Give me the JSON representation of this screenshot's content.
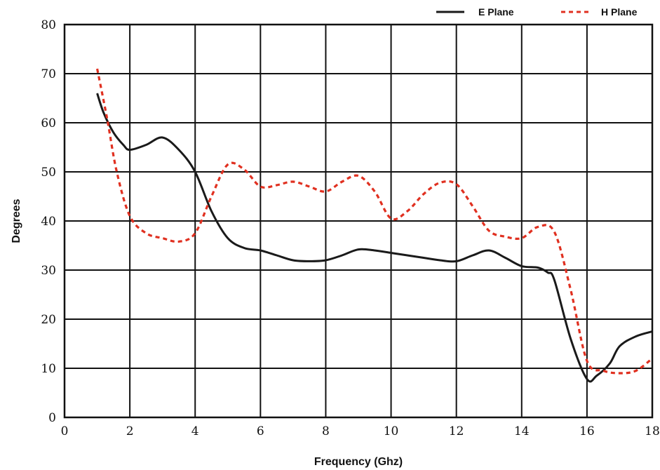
{
  "chart_data": {
    "type": "line",
    "xlabel": "Frequency  (Ghz)",
    "ylabel": "Degrees",
    "xlim": [
      0,
      18
    ],
    "ylim": [
      0,
      80
    ],
    "x_ticks": [
      0,
      2,
      4,
      6,
      8,
      10,
      12,
      14,
      16,
      18
    ],
    "y_ticks": [
      0,
      10,
      20,
      30,
      40,
      50,
      60,
      70,
      80
    ],
    "grid": true,
    "legend_position": "top-right",
    "series": [
      {
        "name": "E Plane",
        "color": "#1a1a1a",
        "style": "solid",
        "points": [
          [
            1,
            66
          ],
          [
            1.2,
            62
          ],
          [
            1.5,
            58
          ],
          [
            1.8,
            55.5
          ],
          [
            2,
            54.5
          ],
          [
            2.5,
            55.5
          ],
          [
            3,
            57
          ],
          [
            3.5,
            54.5
          ],
          [
            4,
            50
          ],
          [
            4.5,
            42
          ],
          [
            5,
            36.5
          ],
          [
            5.5,
            34.5
          ],
          [
            6,
            34
          ],
          [
            6.5,
            33
          ],
          [
            7,
            32
          ],
          [
            7.5,
            31.8
          ],
          [
            8,
            32
          ],
          [
            8.5,
            33
          ],
          [
            9,
            34.2
          ],
          [
            9.5,
            34
          ],
          [
            10,
            33.5
          ],
          [
            10.5,
            33
          ],
          [
            11,
            32.5
          ],
          [
            11.5,
            32
          ],
          [
            12,
            31.8
          ],
          [
            12.5,
            33
          ],
          [
            13,
            34
          ],
          [
            13.5,
            32.5
          ],
          [
            14,
            30.8
          ],
          [
            14.5,
            30.5
          ],
          [
            14.8,
            29.5
          ],
          [
            15,
            28
          ],
          [
            15.5,
            16
          ],
          [
            16,
            7.8
          ],
          [
            16.3,
            8.5
          ],
          [
            16.7,
            11
          ],
          [
            17,
            14.5
          ],
          [
            17.5,
            16.5
          ],
          [
            18,
            17.5
          ]
        ]
      },
      {
        "name": "H Plane",
        "color": "#e03020",
        "style": "dashed",
        "points": [
          [
            1,
            71
          ],
          [
            1.3,
            61
          ],
          [
            1.6,
            50
          ],
          [
            2,
            41
          ],
          [
            2.5,
            37.5
          ],
          [
            3,
            36.5
          ],
          [
            3.5,
            35.8
          ],
          [
            4,
            37.5
          ],
          [
            4.5,
            45
          ],
          [
            5,
            51.5
          ],
          [
            5.5,
            50.5
          ],
          [
            6,
            47
          ],
          [
            6.5,
            47.3
          ],
          [
            7,
            48
          ],
          [
            7.5,
            47
          ],
          [
            8,
            46
          ],
          [
            8.5,
            48
          ],
          [
            9,
            49.2
          ],
          [
            9.5,
            46
          ],
          [
            10,
            40.5
          ],
          [
            10.5,
            42
          ],
          [
            11,
            45.5
          ],
          [
            11.5,
            47.8
          ],
          [
            12,
            47.5
          ],
          [
            12.5,
            43
          ],
          [
            13,
            38
          ],
          [
            13.5,
            36.8
          ],
          [
            14,
            36.5
          ],
          [
            14.5,
            38.8
          ],
          [
            15,
            37.8
          ],
          [
            15.5,
            26
          ],
          [
            16,
            11.5
          ],
          [
            16.5,
            9.5
          ],
          [
            17,
            9
          ],
          [
            17.5,
            9.5
          ],
          [
            18,
            12
          ]
        ]
      }
    ]
  }
}
